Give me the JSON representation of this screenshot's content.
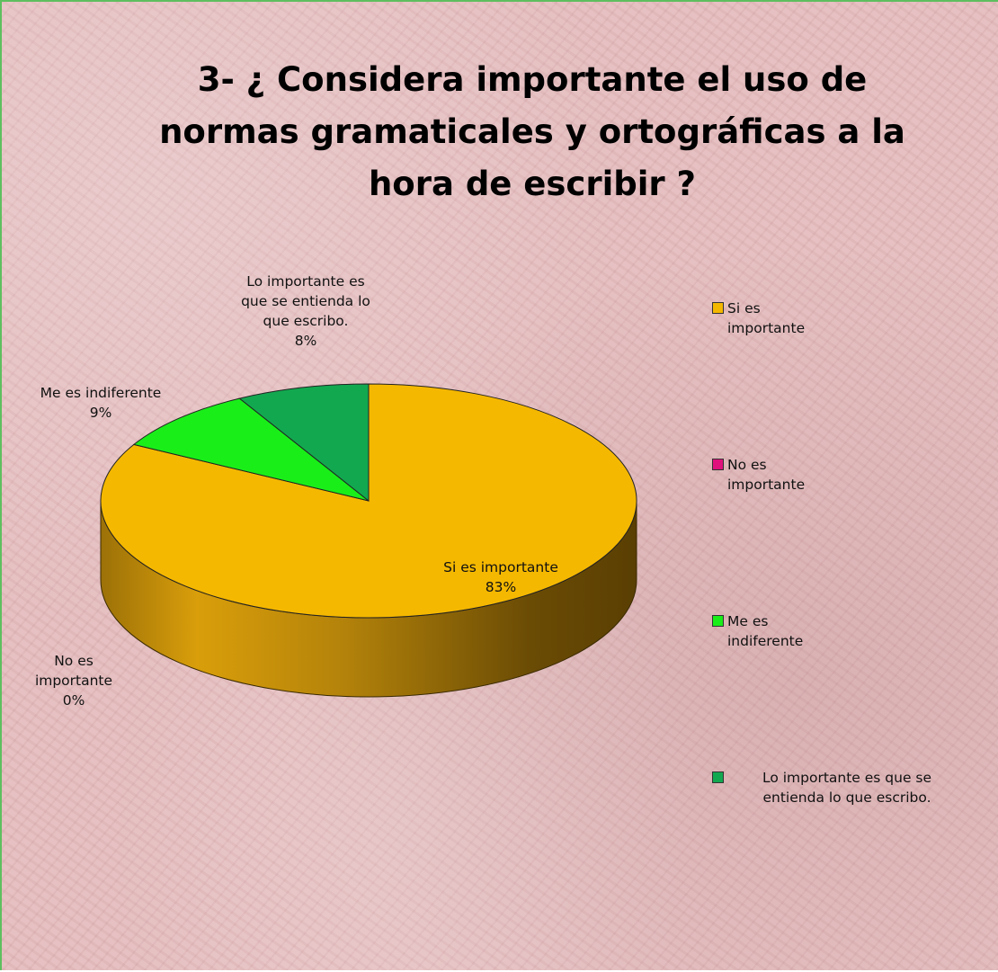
{
  "chart_data": {
    "type": "pie",
    "title": "3- ¿ Considera importante el uso de normas gramaticales y ortográficas a la hora de escribir ?",
    "categories": [
      "Si es importante",
      "No es importante",
      "Me es indiferente",
      "Lo importante es que se entienda lo que escribo."
    ],
    "values": [
      83,
      0,
      9,
      8
    ],
    "data_labels": [
      {
        "category": "Si es importante",
        "percent": "83%"
      },
      {
        "category": "No es importante",
        "percent": "0%"
      },
      {
        "category": "Me es indiferente",
        "percent": "9%"
      },
      {
        "category": "Lo importante es que se entienda lo que escribo.",
        "percent": "8%"
      }
    ],
    "colors": [
      "#f5b800",
      "#e0107c",
      "#19ee19",
      "#12a850"
    ],
    "legend_position": "right",
    "style": "3d-pie"
  }
}
